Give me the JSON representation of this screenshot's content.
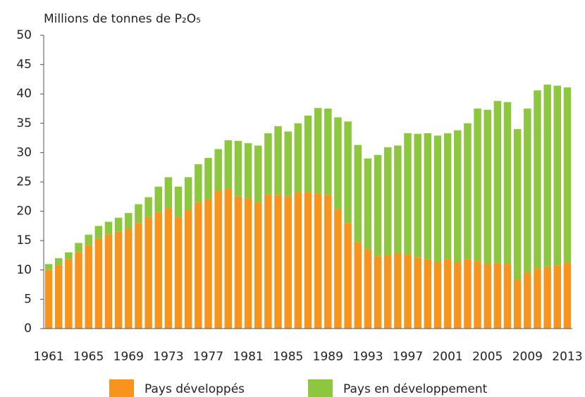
{
  "chart_data": {
    "type": "stacked_bar",
    "y_label": "Millions de tonnes de P₂O₅",
    "categories": [
      "1961",
      null,
      null,
      null,
      "1965",
      null,
      null,
      null,
      "1969",
      null,
      null,
      null,
      "1973",
      null,
      null,
      null,
      "1977",
      null,
      null,
      null,
      "1981",
      null,
      null,
      null,
      "1985",
      null,
      null,
      null,
      "1989",
      null,
      null,
      null,
      "1993",
      null,
      null,
      null,
      "1997",
      null,
      null,
      null,
      "2001",
      null,
      null,
      null,
      "2005",
      null,
      null,
      null,
      "2009",
      null,
      null,
      null,
      "2013"
    ],
    "series": [
      {
        "name": "Pays développés",
        "color": "#f7941d",
        "values": [
          10,
          10.8,
          11.8,
          13,
          14.2,
          15.3,
          16,
          16.5,
          17,
          18,
          19,
          19.8,
          20.5,
          19,
          20.2,
          21.5,
          22,
          23.5,
          23.8,
          22.5,
          22.2,
          21.5,
          22.8,
          22.8,
          22.5,
          23.2,
          23.2,
          23,
          22.8,
          20.3,
          18,
          14.7,
          13.5,
          12.3,
          12.5,
          12.8,
          12.6,
          12.1,
          11.8,
          11.3,
          11.8,
          11.3,
          11.8,
          11.5,
          11,
          11.1,
          11,
          8.3,
          9.5,
          10.2,
          10.5,
          10.8,
          11.2
        ]
      },
      {
        "name": "Pays en développement",
        "color": "#8dc63f",
        "values": [
          1.0,
          1.2,
          1.2,
          1.6,
          1.8,
          2.2,
          2.2,
          2.4,
          2.7,
          3.2,
          3.4,
          4.4,
          5.3,
          5.2,
          5.6,
          6.5,
          7.1,
          7.1,
          8.3,
          9.5,
          9.4,
          9.7,
          10.5,
          11.7,
          11.1,
          11.8,
          13.1,
          14.6,
          14.7,
          15.7,
          17.3,
          16.6,
          15.5,
          17.3,
          18.4,
          18.4,
          20.7,
          21.1,
          21.5,
          21.6,
          21.5,
          22.5,
          23.2,
          26.0,
          26.3,
          27.7,
          27.6,
          25.7,
          28.0,
          30.4,
          31.1,
          30.6,
          29.9
        ]
      }
    ],
    "ylim": [
      0,
      50
    ],
    "yticks": [
      0,
      5,
      10,
      15,
      20,
      25,
      30,
      35,
      40,
      45,
      50
    ],
    "grid": false,
    "legend": "bottom"
  }
}
